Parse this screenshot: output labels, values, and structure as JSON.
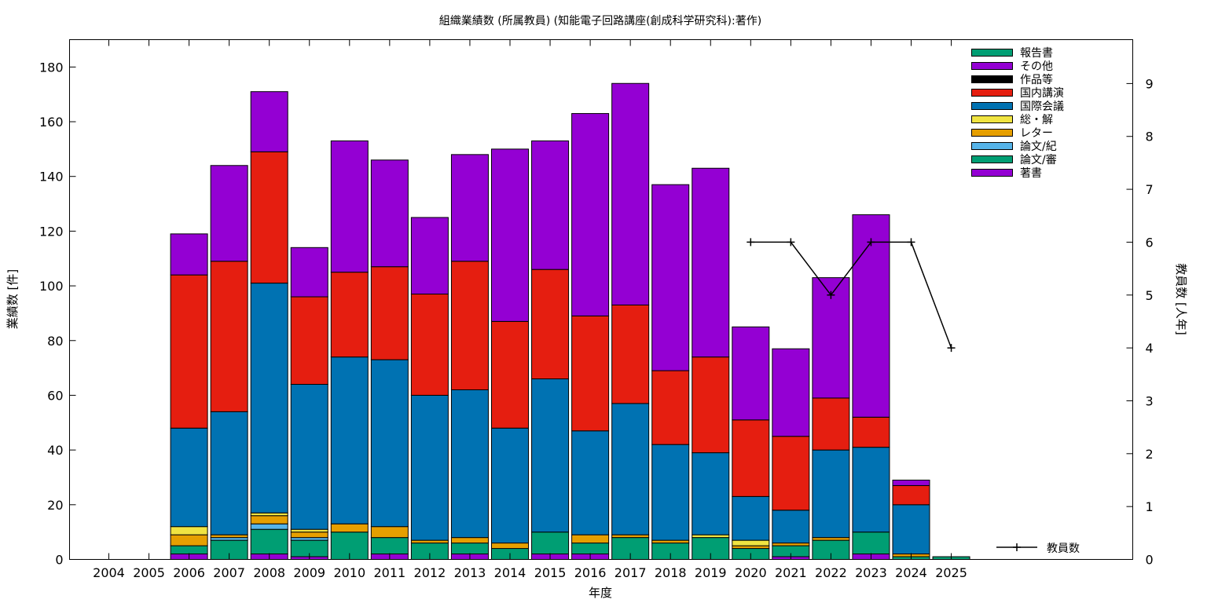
{
  "chart_data": {
    "type": "bar",
    "stacked": true,
    "title": "組織業績数 (所属教員) (知能電子回路講座(創成科学研究科):著作)",
    "xlabel": "年度",
    "ylabel": "業績数 [件]",
    "y2label": "教員数 [人年]",
    "ylim": [
      0,
      190
    ],
    "y2lim": [
      0,
      9.83
    ],
    "yticks": [
      0,
      20,
      40,
      60,
      80,
      100,
      120,
      140,
      160,
      180
    ],
    "y2ticks": [
      0,
      1,
      2,
      3,
      4,
      5,
      6,
      7,
      8,
      9
    ],
    "grid": false,
    "legend_position": "top-right",
    "categories": [
      "2004",
      "2005",
      "2006",
      "2007",
      "2008",
      "2009",
      "2010",
      "2011",
      "2012",
      "2013",
      "2014",
      "2015",
      "2016",
      "2017",
      "2018",
      "2019",
      "2020",
      "2021",
      "2022",
      "2023",
      "2024",
      "2025"
    ],
    "series": [
      {
        "name": "著書",
        "color": "#9400d3",
        "values": [
          0,
          0,
          2,
          0,
          2,
          1,
          0,
          2,
          0,
          2,
          0,
          2,
          2,
          0,
          0,
          0,
          0,
          1,
          0,
          2,
          0,
          0
        ]
      },
      {
        "name": "論文/審",
        "color": "#009e73",
        "values": [
          0,
          0,
          3,
          7,
          9,
          6,
          10,
          6,
          6,
          4,
          4,
          8,
          4,
          8,
          6,
          8,
          4,
          4,
          7,
          8,
          1,
          1
        ]
      },
      {
        "name": "論文/紀",
        "color": "#56b4e9",
        "values": [
          0,
          0,
          0,
          1,
          2,
          1,
          0,
          0,
          0,
          0,
          0,
          0,
          0,
          0,
          0,
          0,
          0,
          0,
          0,
          0,
          0,
          0
        ]
      },
      {
        "name": "レター",
        "color": "#e69f00",
        "values": [
          0,
          0,
          4,
          1,
          3,
          2,
          3,
          4,
          1,
          2,
          2,
          0,
          3,
          1,
          1,
          0,
          1,
          1,
          1,
          0,
          1,
          0
        ]
      },
      {
        "name": "総・解",
        "color": "#f0e442",
        "values": [
          0,
          0,
          3,
          0,
          1,
          1,
          0,
          0,
          0,
          0,
          0,
          0,
          0,
          0,
          0,
          1,
          2,
          0,
          0,
          0,
          0,
          0
        ]
      },
      {
        "name": "国際会議",
        "color": "#0072b2",
        "values": [
          0,
          0,
          36,
          45,
          84,
          53,
          61,
          61,
          53,
          54,
          42,
          56,
          38,
          48,
          35,
          30,
          16,
          12,
          32,
          31,
          18,
          0
        ]
      },
      {
        "name": "国内講演",
        "color": "#e51e10",
        "values": [
          0,
          0,
          56,
          55,
          48,
          32,
          31,
          34,
          37,
          47,
          39,
          40,
          42,
          36,
          27,
          35,
          28,
          27,
          19,
          11,
          7,
          0
        ]
      },
      {
        "name": "作品等",
        "color": "#000000",
        "values": [
          0,
          0,
          0,
          0,
          0,
          0,
          0,
          0,
          0,
          0,
          0,
          0,
          0,
          0,
          0,
          0,
          0,
          0,
          0,
          0,
          0,
          0
        ]
      },
      {
        "name": "その他",
        "color": "#9400d3",
        "values": [
          0,
          0,
          15,
          35,
          22,
          18,
          48,
          39,
          28,
          39,
          63,
          47,
          74,
          81,
          68,
          69,
          34,
          32,
          44,
          74,
          2,
          0
        ]
      },
      {
        "name": "報告書",
        "color": "#009e73",
        "values": [
          0,
          0,
          0,
          0,
          0,
          0,
          0,
          0,
          0,
          0,
          0,
          0,
          0,
          0,
          0,
          0,
          0,
          0,
          0,
          0,
          0,
          0
        ]
      }
    ],
    "line_series": {
      "name": "教員数",
      "color": "#000000",
      "x": [
        "2020",
        "2021",
        "2022",
        "2023",
        "2024",
        "2025"
      ],
      "values": [
        6,
        6,
        5,
        6,
        6,
        4
      ]
    }
  }
}
